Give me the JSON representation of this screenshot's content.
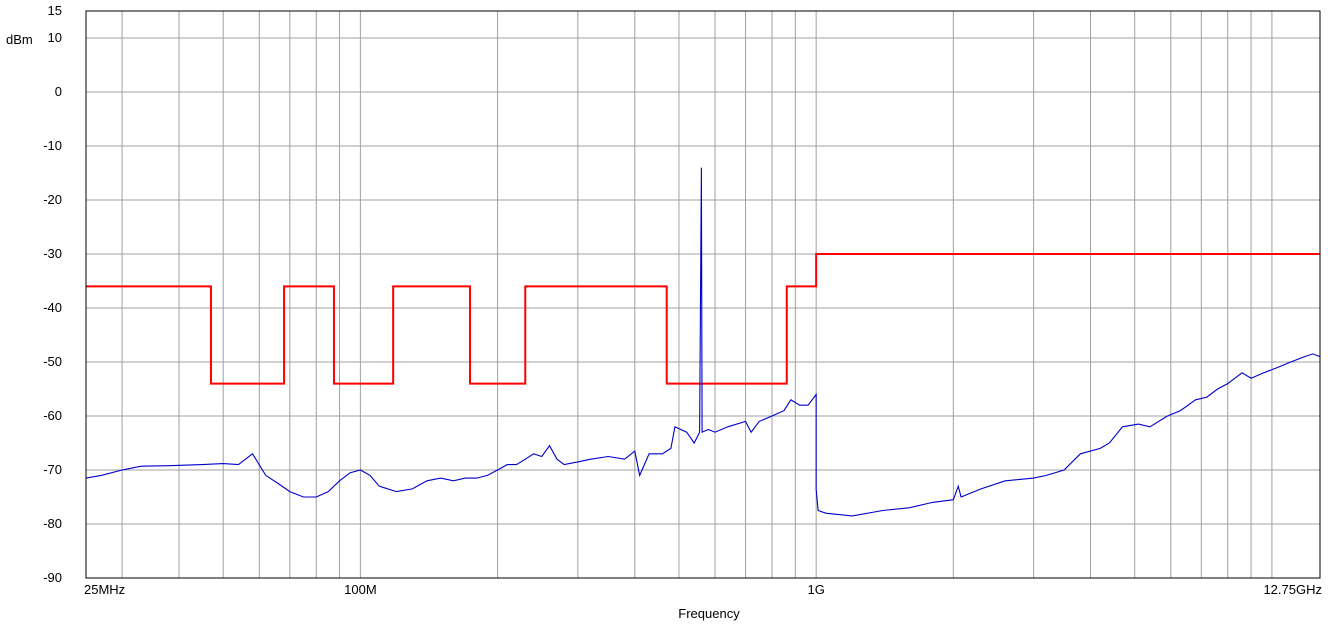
{
  "chart_data": {
    "type": "line",
    "title": "",
    "xlabel": "Frequency",
    "ylabel": "dBm",
    "x_scale": "log",
    "xlim": [
      25000000,
      12750000000
    ],
    "ylim": [
      -90,
      15
    ],
    "grid": true,
    "x_ticks": [
      {
        "value": 25000000,
        "label": "25MHz"
      },
      {
        "value": 100000000,
        "label": "100M"
      },
      {
        "value": 1000000000,
        "label": "1G"
      },
      {
        "value": 12750000000,
        "label": "12.75GHz"
      }
    ],
    "y_ticks": [
      {
        "value": 15,
        "label": "15"
      },
      {
        "value": 10,
        "label": "10"
      },
      {
        "value": 0,
        "label": "0"
      },
      {
        "value": -10,
        "label": "-10"
      },
      {
        "value": -20,
        "label": "-20"
      },
      {
        "value": -30,
        "label": "-30"
      },
      {
        "value": -40,
        "label": "-40"
      },
      {
        "value": -50,
        "label": "-50"
      },
      {
        "value": -60,
        "label": "-60"
      },
      {
        "value": -70,
        "label": "-70"
      },
      {
        "value": -80,
        "label": "-80"
      },
      {
        "value": -90,
        "label": "-90"
      }
    ],
    "series": [
      {
        "color": "#ff0000",
        "style": "step",
        "points": [
          [
            25000000,
            -36
          ],
          [
            47000000,
            -36
          ],
          [
            47000000,
            -54
          ],
          [
            68000000,
            -54
          ],
          [
            68000000,
            -36
          ],
          [
            87500000,
            -36
          ],
          [
            87500000,
            -54
          ],
          [
            118000000,
            -54
          ],
          [
            118000000,
            -36
          ],
          [
            174000000,
            -36
          ],
          [
            174000000,
            -54
          ],
          [
            230000000,
            -54
          ],
          [
            230000000,
            -36
          ],
          [
            470000000,
            -36
          ],
          [
            470000000,
            -54
          ],
          [
            862000000,
            -54
          ],
          [
            862000000,
            -36
          ],
          [
            1000000000,
            -36
          ],
          [
            1000000000,
            -30
          ],
          [
            12750000000,
            -30
          ]
        ]
      },
      {
        "color": "#0000cc",
        "style": "line",
        "points": [
          [
            25000000,
            -71.5
          ],
          [
            27000000,
            -71
          ],
          [
            30000000,
            -70
          ],
          [
            33000000,
            -69.3
          ],
          [
            38000000,
            -69.2
          ],
          [
            45000000,
            -69
          ],
          [
            50000000,
            -68.8
          ],
          [
            54000000,
            -69
          ],
          [
            58000000,
            -67
          ],
          [
            62000000,
            -71
          ],
          [
            66000000,
            -72.5
          ],
          [
            70000000,
            -74
          ],
          [
            75000000,
            -75
          ],
          [
            80000000,
            -75
          ],
          [
            85000000,
            -74
          ],
          [
            90000000,
            -72
          ],
          [
            95000000,
            -70.5
          ],
          [
            100000000,
            -70
          ],
          [
            105000000,
            -71
          ],
          [
            110000000,
            -73
          ],
          [
            120000000,
            -74
          ],
          [
            130000000,
            -73.5
          ],
          [
            140000000,
            -72
          ],
          [
            150000000,
            -71.5
          ],
          [
            160000000,
            -72
          ],
          [
            170000000,
            -71.5
          ],
          [
            180000000,
            -71.5
          ],
          [
            190000000,
            -71
          ],
          [
            200000000,
            -70
          ],
          [
            210000000,
            -69
          ],
          [
            220000000,
            -69
          ],
          [
            230000000,
            -68
          ],
          [
            240000000,
            -67
          ],
          [
            250000000,
            -67.5
          ],
          [
            260000000,
            -65.5
          ],
          [
            270000000,
            -68
          ],
          [
            280000000,
            -69
          ],
          [
            300000000,
            -68.5
          ],
          [
            320000000,
            -68
          ],
          [
            350000000,
            -67.5
          ],
          [
            380000000,
            -68
          ],
          [
            400000000,
            -66.5
          ],
          [
            410000000,
            -71
          ],
          [
            430000000,
            -67
          ],
          [
            460000000,
            -67
          ],
          [
            480000000,
            -66
          ],
          [
            490000000,
            -62
          ],
          [
            520000000,
            -63
          ],
          [
            540000000,
            -65
          ],
          [
            555000000,
            -63
          ],
          [
            560000000,
            -14
          ],
          [
            562000000,
            -63
          ],
          [
            580000000,
            -62.5
          ],
          [
            600000000,
            -63
          ],
          [
            640000000,
            -62
          ],
          [
            700000000,
            -61
          ],
          [
            720000000,
            -63
          ],
          [
            750000000,
            -61
          ],
          [
            800000000,
            -60
          ],
          [
            850000000,
            -59
          ],
          [
            880000000,
            -57
          ],
          [
            920000000,
            -58
          ],
          [
            960000000,
            -58
          ],
          [
            1000000000,
            -56
          ],
          [
            1000000000,
            -73.5
          ],
          [
            1010000000,
            -77.5
          ],
          [
            1050000000,
            -78
          ],
          [
            1200000000,
            -78.5
          ],
          [
            1400000000,
            -77.5
          ],
          [
            1600000000,
            -77
          ],
          [
            1800000000,
            -76
          ],
          [
            2000000000,
            -75.5
          ],
          [
            2050000000,
            -73
          ],
          [
            2080000000,
            -75
          ],
          [
            2300000000,
            -73.5
          ],
          [
            2600000000,
            -72
          ],
          [
            3000000000,
            -71.5
          ],
          [
            3200000000,
            -71
          ],
          [
            3500000000,
            -70
          ],
          [
            3800000000,
            -67
          ],
          [
            4200000000,
            -66
          ],
          [
            4400000000,
            -65
          ],
          [
            4700000000,
            -62
          ],
          [
            5100000000,
            -61.5
          ],
          [
            5400000000,
            -62
          ],
          [
            5900000000,
            -60
          ],
          [
            6300000000,
            -59
          ],
          [
            6800000000,
            -57
          ],
          [
            7200000000,
            -56.5
          ],
          [
            7600000000,
            -55
          ],
          [
            8000000000,
            -54
          ],
          [
            8600000000,
            -52
          ],
          [
            9000000000,
            -53
          ],
          [
            9600000000,
            -52
          ],
          [
            10300000000,
            -51
          ],
          [
            11000000000,
            -50
          ],
          [
            11800000000,
            -49
          ],
          [
            12300000000,
            -48.5
          ],
          [
            12750000000,
            -49
          ]
        ]
      }
    ]
  }
}
